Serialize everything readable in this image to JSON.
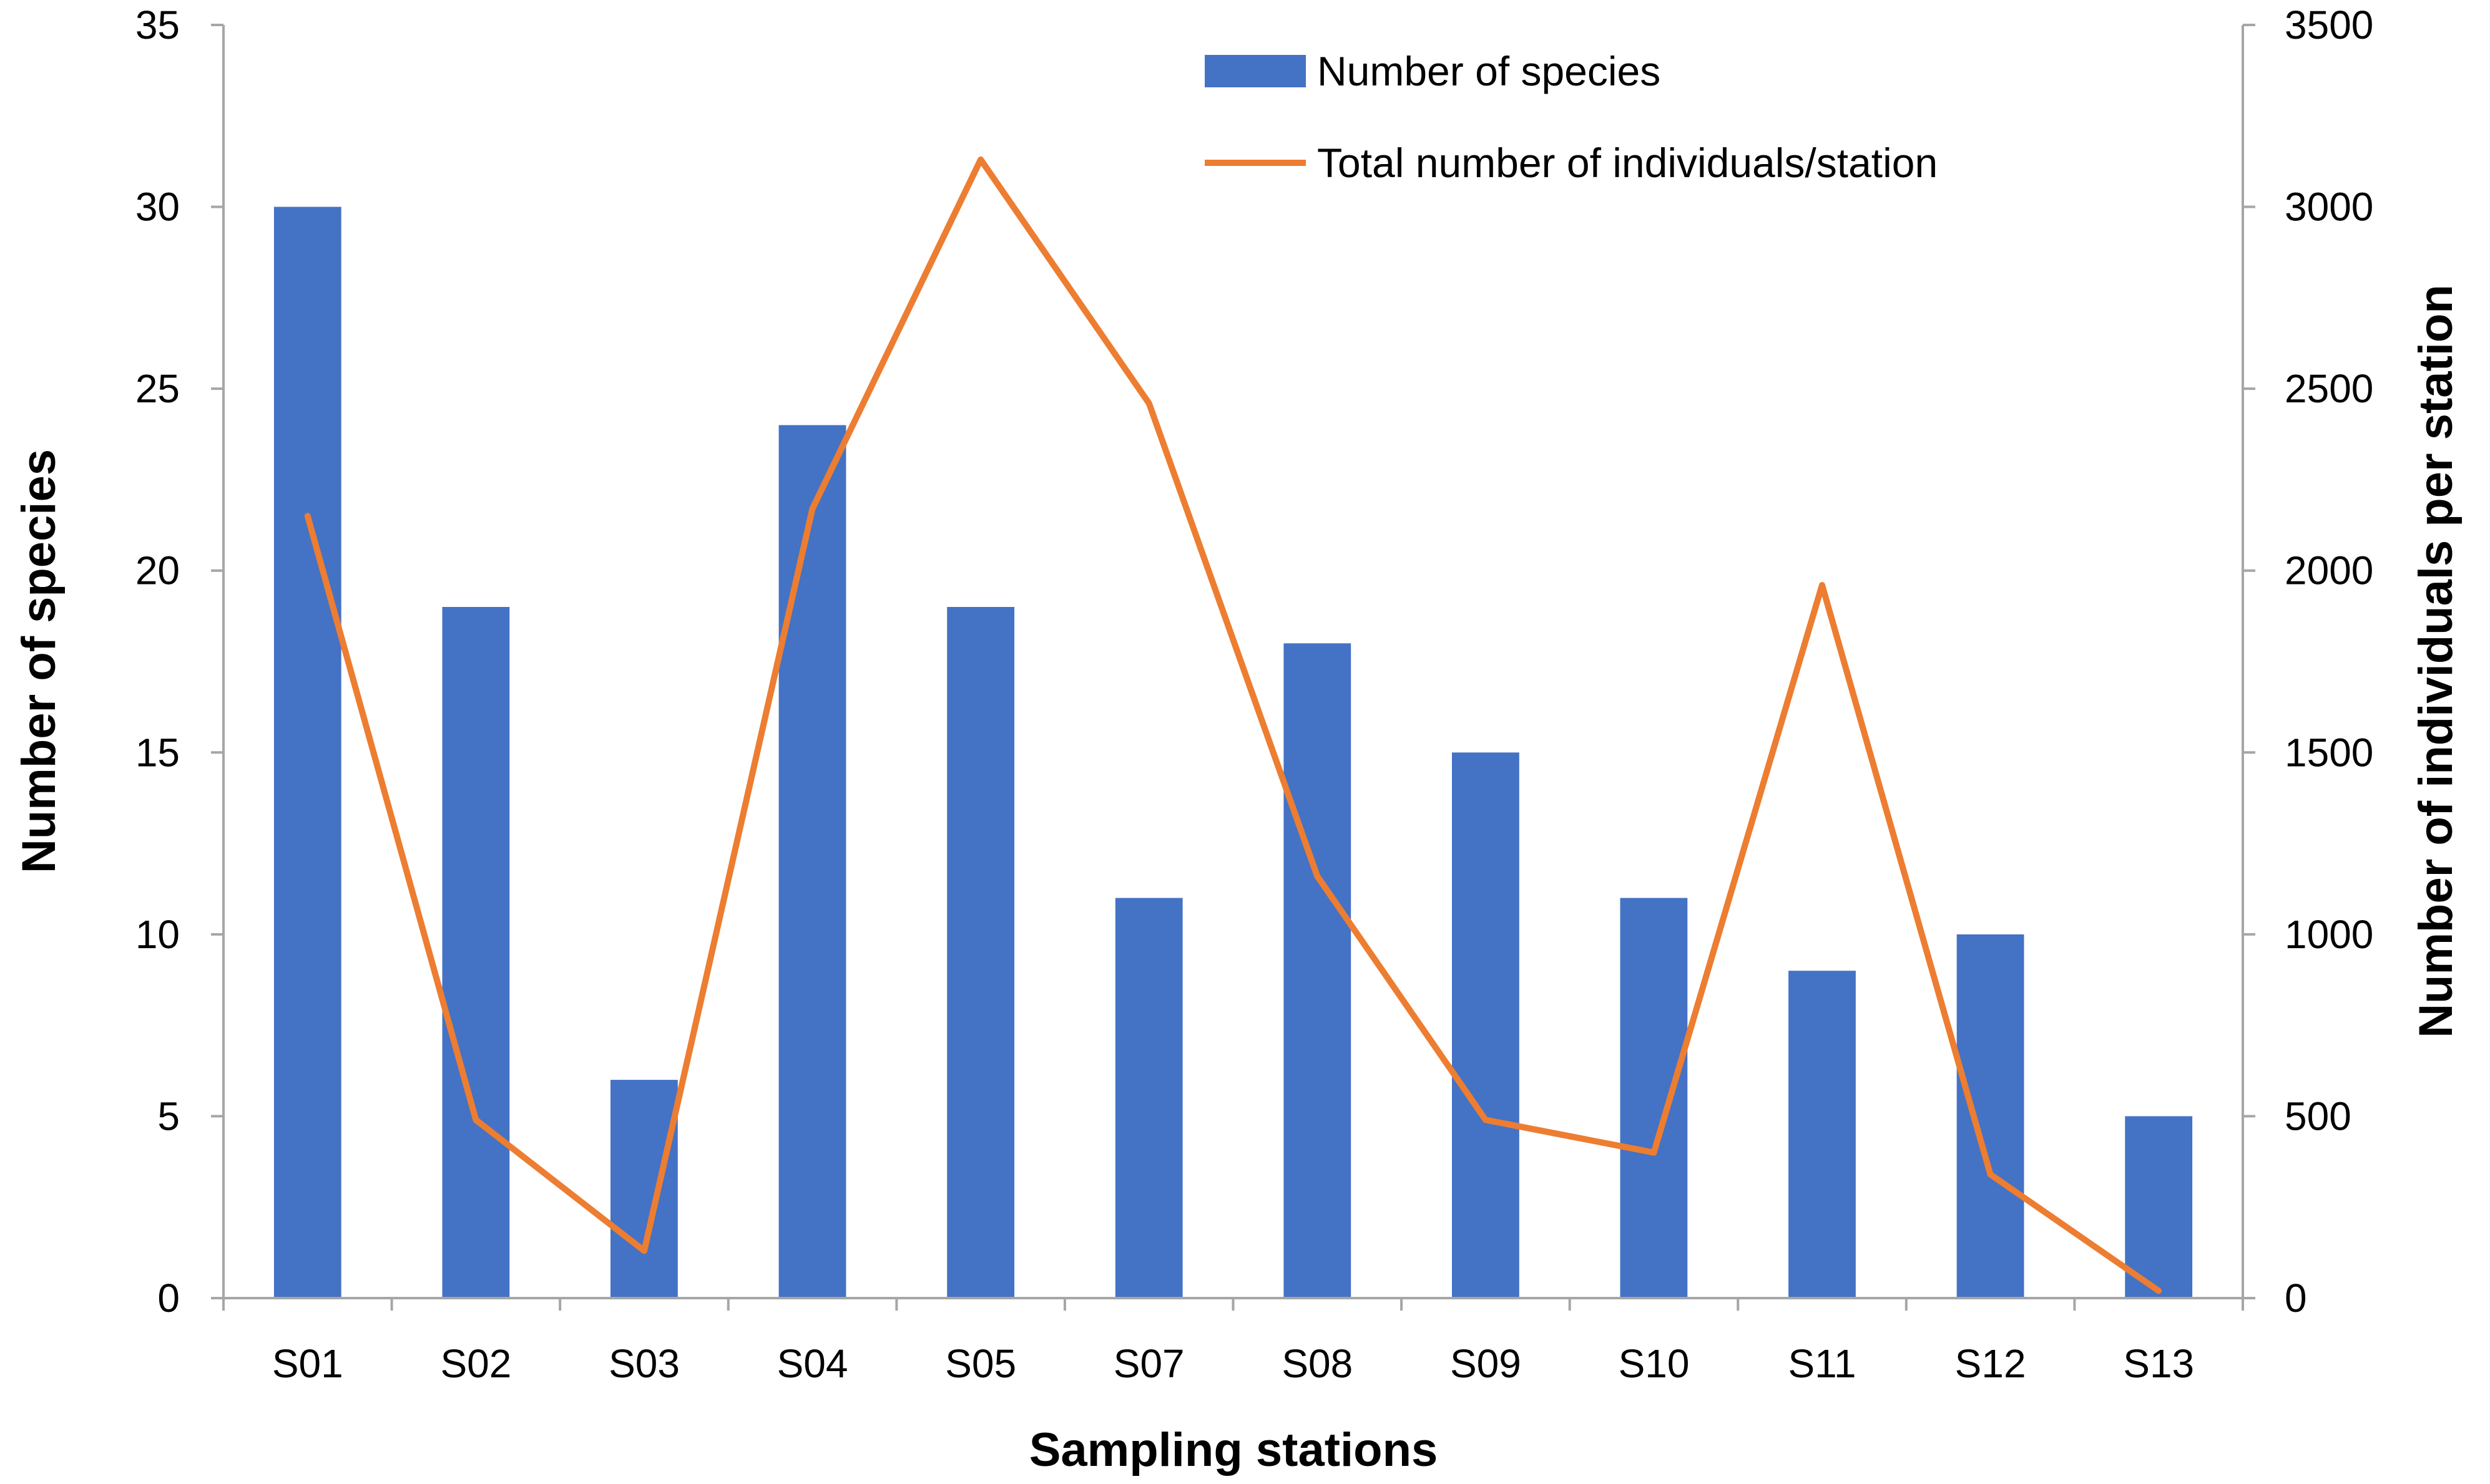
{
  "chart_data": {
    "type": "bar+line",
    "title": "",
    "categories": [
      "S01",
      "S02",
      "S03",
      "S04",
      "S05",
      "S07",
      "S08",
      "S09",
      "S10",
      "S11",
      "S12",
      "S13"
    ],
    "series": [
      {
        "name": "Number of species",
        "type": "bar",
        "axis": "left",
        "color": "#4472c4",
        "values": [
          30,
          19,
          6,
          24,
          19,
          11,
          18,
          15,
          11,
          9,
          10,
          5
        ]
      },
      {
        "name": "Total number of individuals/station",
        "type": "line",
        "axis": "right",
        "color": "#ed7d31",
        "values": [
          2150,
          490,
          130,
          2170,
          3130,
          2460,
          1160,
          490,
          400,
          1960,
          340,
          20
        ]
      }
    ],
    "xlabel": "Sampling stations",
    "ylabel": "Number of species",
    "y2label": "Number of individuals per station",
    "ylim": [
      0,
      35
    ],
    "yticks": [
      0,
      5,
      10,
      15,
      20,
      25,
      30,
      35
    ],
    "y2lim": [
      0,
      3500
    ],
    "y2ticks": [
      0,
      500,
      1000,
      1500,
      2000,
      2500,
      3000,
      3500
    ],
    "grid": false,
    "legend_position": "top-center"
  }
}
